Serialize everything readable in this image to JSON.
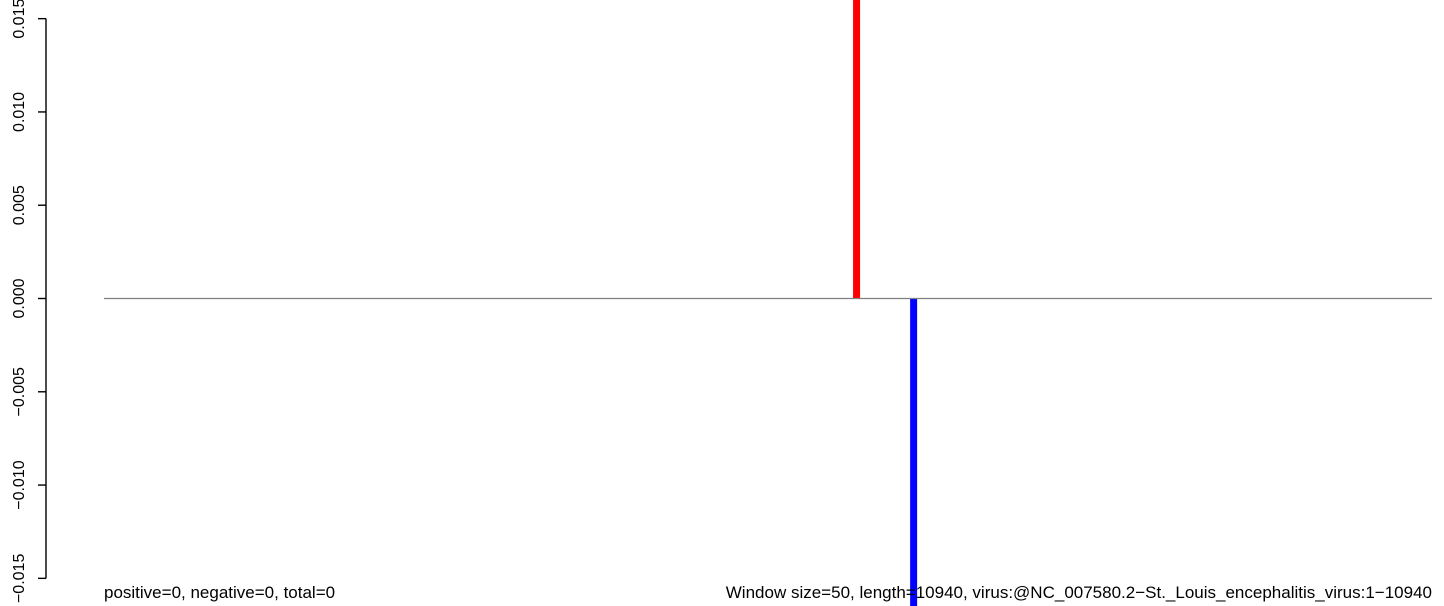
{
  "chart_data": {
    "type": "bar",
    "title": "",
    "xlabel": "",
    "ylabel": "",
    "ylim": [
      -0.016,
      0.016
    ],
    "xlim": [
      1,
      10940
    ],
    "grid": false,
    "y_ticks": [
      -0.015,
      -0.01,
      -0.005,
      0.0,
      0.005,
      0.01,
      0.015
    ],
    "y_tick_labels": [
      "−0.015",
      "−0.010",
      "−0.005",
      "0.000",
      "0.005",
      "0.010",
      "0.015"
    ],
    "series": [
      {
        "color": "#ff0000",
        "x": [
          6200
        ],
        "values": [
          0.0175
        ]
      },
      {
        "color": "#0000ff",
        "x": [
          6670
        ],
        "values": [
          -0.0175
        ]
      }
    ],
    "zero_line_color": "#808080",
    "annotations": {
      "left": "positive=0, negative=0, total=0",
      "right": "Window size=50, length=10940, virus:@NC_007580.2−St._Louis_encephalitis_virus:1−10940"
    }
  }
}
